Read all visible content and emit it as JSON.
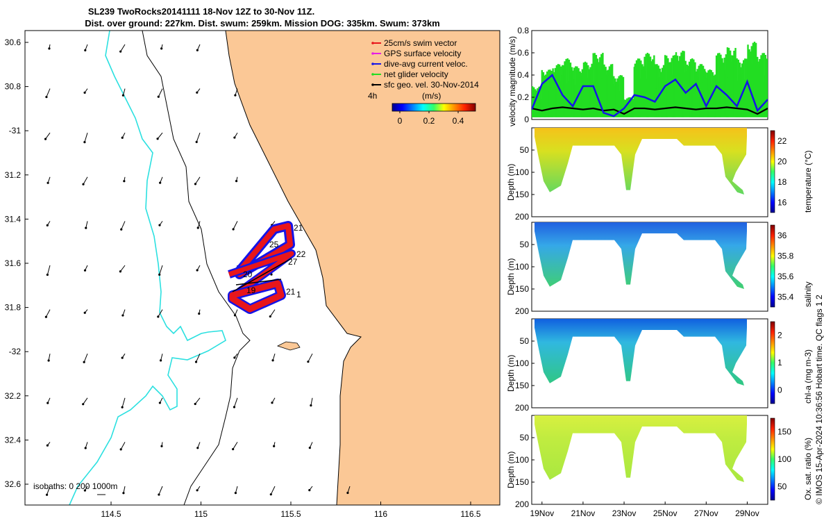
{
  "title": {
    "line1": "SL239 TwoRocks20141111 18-Nov 12Z to 30-Nov 11Z.",
    "line2": "Dist. over ground: 227km. Dist. swum: 259km. Mission DOG: 335km. Swum: 373km"
  },
  "map": {
    "lat_ticks": [
      "30.6",
      "30.8",
      "-31",
      "31.2",
      "31.4",
      "31.6",
      "31.8",
      "-32",
      "32.2",
      "32.4",
      "32.6"
    ],
    "lon_ticks": [
      "114.5",
      "115",
      "115.5",
      "116",
      "116.5"
    ],
    "legend": [
      {
        "label": "25cm/s swim vector",
        "color": "#e8161b"
      },
      {
        "label": "GPS surface velocity",
        "color": "#e51ee5"
      },
      {
        "label": "dive-avg current veloc.",
        "color": "#1414e8"
      },
      {
        "label": "net glider velocity",
        "color": "#22dd22"
      },
      {
        "label": "sfc geo. vel. 30-Nov-2014",
        "color": "#000000"
      }
    ],
    "colorbar": {
      "unit": "(m/s)",
      "ticks": [
        "0",
        "0.2",
        "0.4"
      ],
      "side_label": "4h"
    },
    "isobaths": "isobaths: 0   200  1000m",
    "track_labels": [
      "21",
      "25",
      "22",
      "27",
      "20",
      "19",
      "21",
      "1"
    ]
  },
  "right_panels": {
    "x_ticks": [
      "19Nov",
      "21Nov",
      "23Nov",
      "25Nov",
      "27Nov",
      "29Nov"
    ],
    "depth_label": "Depth (m)",
    "depth_ticks": [
      "50",
      "100",
      "150",
      "200"
    ],
    "credit": "© IMOS 15-Apr-2024 10:36:56 Hobart time. QC flags 1  2",
    "panels": [
      {
        "label": "temperature (°C)",
        "ticks": [
          "16",
          "18",
          "20",
          "22"
        ]
      },
      {
        "label": "salinity",
        "ticks": [
          "35.4",
          "35.6",
          "35.8",
          "36"
        ]
      },
      {
        "label": "chl-a (mg m-3)",
        "ticks": [
          "0",
          "1",
          "2"
        ]
      },
      {
        "label": "Ox. sat. ratio (%)",
        "ticks": [
          "50",
          "100",
          "150"
        ]
      }
    ]
  },
  "chart_data": {
    "type": "line",
    "title": "velocity magnitude",
    "ylabel": "velocity magnitude (m/s)",
    "ylim": [
      0,
      0.8
    ],
    "y_ticks": [
      "0",
      "0.2",
      "0.4",
      "0.6",
      "0.8"
    ],
    "x": [
      18.5,
      19,
      19.5,
      20,
      20.5,
      21,
      21.5,
      22,
      22.5,
      23,
      23.5,
      24,
      24.5,
      25,
      25.5,
      26,
      26.5,
      27,
      27.5,
      28,
      28.5,
      29,
      29.5,
      30
    ],
    "series": [
      {
        "name": "dive-avg current veloc.",
        "color": "#1414e8",
        "values": [
          0.09,
          0.32,
          0.4,
          0.22,
          0.12,
          0.3,
          0.3,
          0.06,
          0.03,
          0.1,
          0.22,
          0.2,
          0.16,
          0.3,
          0.36,
          0.24,
          0.32,
          0.12,
          0.3,
          0.22,
          0.12,
          0.34,
          0.08,
          0.18
        ]
      },
      {
        "name": "sfc geo. vel.",
        "color": "#000000",
        "values": [
          0.1,
          0.08,
          0.1,
          0.11,
          0.1,
          0.09,
          0.1,
          0.08,
          0.09,
          0.05,
          0.1,
          0.1,
          0.09,
          0.1,
          0.11,
          0.1,
          0.09,
          0.1,
          0.1,
          0.11,
          0.1,
          0.09,
          0.05,
          0.1
        ]
      },
      {
        "name": "net glider velocity",
        "color": "#22dd22",
        "values": [
          0.3,
          0.45,
          0.5,
          0.55,
          0.48,
          0.52,
          0.6,
          0.5,
          0.4,
          0.2,
          0.55,
          0.6,
          0.5,
          0.58,
          0.62,
          0.55,
          0.5,
          0.45,
          0.6,
          0.65,
          0.55,
          0.7,
          0.6,
          0.4
        ]
      }
    ]
  }
}
